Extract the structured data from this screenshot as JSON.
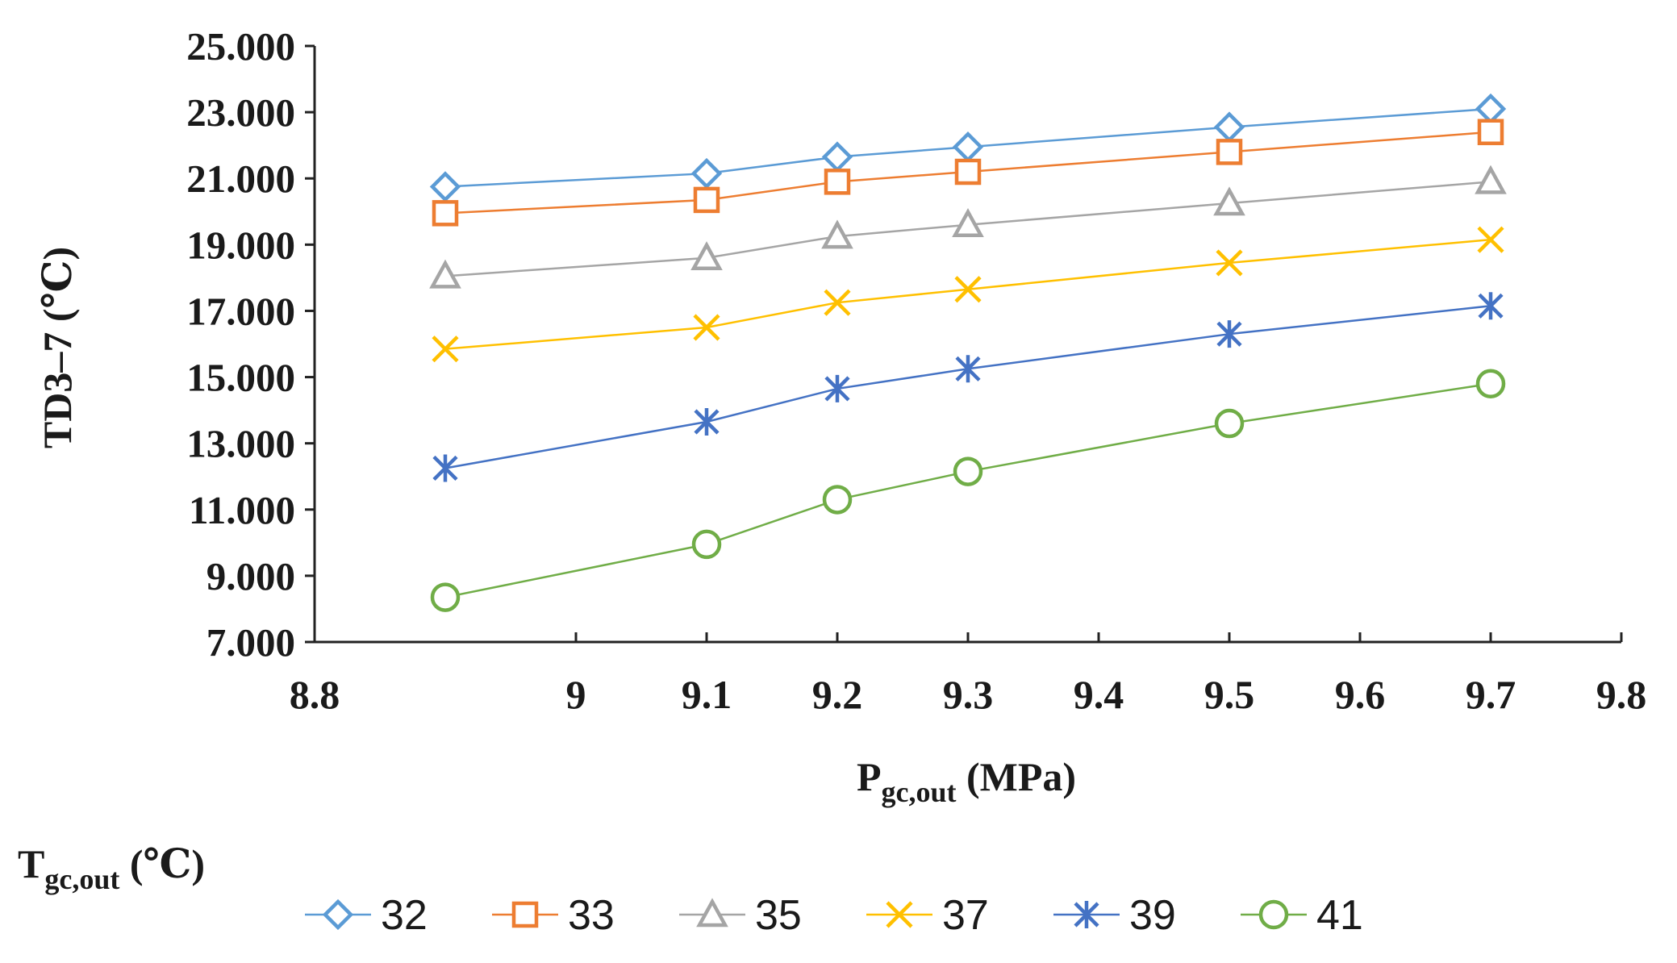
{
  "chart_data": {
    "type": "line",
    "title": "",
    "xlabel_main": "P",
    "xlabel_sub": "gc,out",
    "xlabel_unit": " (MPa)",
    "ylabel": "TD3–7 (℃)",
    "xlim": [
      8.8,
      9.8
    ],
    "ylim": [
      7,
      25
    ],
    "xticks": [
      "8.8",
      "9",
      "9.1",
      "9.2",
      "9.3",
      "9.4",
      "9.5",
      "9.6",
      "9.7",
      "9.8"
    ],
    "xtick_values": [
      8.8,
      9.0,
      9.1,
      9.2,
      9.3,
      9.4,
      9.5,
      9.6,
      9.7,
      9.8
    ],
    "yticks": [
      "7.000",
      "9.000",
      "11.000",
      "13.000",
      "15.000",
      "17.000",
      "19.000",
      "21.000",
      "23.000",
      "25.000"
    ],
    "ytick_values": [
      7,
      9,
      11,
      13,
      15,
      17,
      19,
      21,
      23,
      25
    ],
    "legend_title_main": "T",
    "legend_title_sub": "gc,out",
    "legend_title_unit": " (℃)",
    "x": [
      8.9,
      9.1,
      9.2,
      9.3,
      9.5,
      9.7
    ],
    "series": [
      {
        "name": "32",
        "marker": "diamond",
        "color": "#5B9BD5",
        "values": [
          20.75,
          21.15,
          21.65,
          21.95,
          22.55,
          23.1
        ]
      },
      {
        "name": "33",
        "marker": "square",
        "color": "#ED7D31",
        "values": [
          19.95,
          20.35,
          20.9,
          21.2,
          21.8,
          22.4
        ]
      },
      {
        "name": "35",
        "marker": "triangle",
        "color": "#A5A5A5",
        "values": [
          18.05,
          18.6,
          19.25,
          19.6,
          20.25,
          20.9
        ]
      },
      {
        "name": "37",
        "marker": "x",
        "color": "#FFC000",
        "values": [
          15.85,
          16.5,
          17.25,
          17.65,
          18.45,
          19.15
        ]
      },
      {
        "name": "39",
        "marker": "asterisk",
        "color": "#4472C4",
        "values": [
          12.25,
          13.65,
          14.65,
          15.25,
          16.3,
          17.15
        ]
      },
      {
        "name": "41",
        "marker": "circle",
        "color": "#70AD47",
        "values": [
          8.35,
          9.95,
          11.3,
          12.15,
          13.6,
          14.8
        ]
      }
    ]
  }
}
